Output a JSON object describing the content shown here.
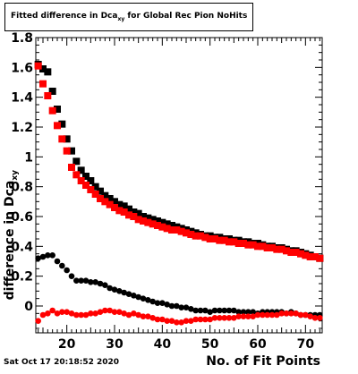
{
  "title": {
    "text": "Fitted difference in Dca",
    "sub": "xy",
    "rest": " for Global Rec Pion NoHits"
  },
  "timestamp": "Sat Oct 17 20:18:52 2020",
  "chart_data": {
    "type": "scatter",
    "xlabel": "No. of Fit Points",
    "ylabel": "difference in Dca",
    "ylabel_sub": "xy",
    "xlim": [
      13.5,
      73.5
    ],
    "ylim": [
      -0.18,
      1.8
    ],
    "xticks": [
      20,
      30,
      40,
      50,
      60,
      70
    ],
    "yticks": [
      0,
      0.2,
      0.4,
      0.6,
      0.8,
      1,
      1.2,
      1.4,
      1.6,
      1.8
    ],
    "yticklabels": [
      "0",
      "0.2",
      "0.4",
      "0.6",
      "0.8",
      "1",
      "1.2",
      "1.4",
      "1.6",
      "1.8"
    ],
    "series": [
      {
        "color": "#000000",
        "marker": "square",
        "x": [
          14,
          15,
          16,
          17,
          18,
          19,
          20,
          21,
          22,
          23,
          24,
          25,
          26,
          27,
          28,
          29,
          30,
          31,
          32,
          33,
          34,
          35,
          36,
          37,
          38,
          39,
          40,
          41,
          42,
          43,
          44,
          45,
          46,
          47,
          48,
          49,
          50,
          51,
          52,
          53,
          54,
          55,
          56,
          57,
          58,
          59,
          60,
          61,
          62,
          63,
          64,
          65,
          66,
          67,
          68,
          69,
          70,
          71,
          72,
          73
        ],
        "y": [
          1.62,
          1.59,
          1.57,
          1.44,
          1.32,
          1.22,
          1.12,
          1.04,
          0.97,
          0.91,
          0.87,
          0.84,
          0.8,
          0.77,
          0.74,
          0.72,
          0.7,
          0.68,
          0.67,
          0.65,
          0.63,
          0.62,
          0.6,
          0.59,
          0.58,
          0.57,
          0.56,
          0.55,
          0.54,
          0.53,
          0.52,
          0.51,
          0.5,
          0.49,
          0.48,
          0.47,
          0.47,
          0.46,
          0.46,
          0.45,
          0.45,
          0.44,
          0.44,
          0.43,
          0.43,
          0.42,
          0.42,
          0.41,
          0.4,
          0.4,
          0.39,
          0.39,
          0.38,
          0.37,
          0.37,
          0.36,
          0.35,
          0.34,
          0.33,
          0.32
        ]
      },
      {
        "color": "#ff0000",
        "marker": "square",
        "x": [
          14,
          15,
          16,
          17,
          18,
          19,
          20,
          21,
          22,
          23,
          24,
          25,
          26,
          27,
          28,
          29,
          30,
          31,
          32,
          33,
          34,
          35,
          36,
          37,
          38,
          39,
          40,
          41,
          42,
          43,
          44,
          45,
          46,
          47,
          48,
          49,
          50,
          51,
          52,
          53,
          54,
          55,
          56,
          57,
          58,
          59,
          60,
          61,
          62,
          63,
          64,
          65,
          66,
          67,
          68,
          69,
          70,
          71,
          72,
          73
        ],
        "y": [
          1.61,
          1.49,
          1.41,
          1.31,
          1.21,
          1.12,
          1.04,
          0.93,
          0.88,
          0.84,
          0.81,
          0.78,
          0.75,
          0.72,
          0.7,
          0.68,
          0.66,
          0.64,
          0.63,
          0.61,
          0.6,
          0.58,
          0.57,
          0.56,
          0.55,
          0.54,
          0.53,
          0.52,
          0.51,
          0.51,
          0.5,
          0.49,
          0.48,
          0.47,
          0.47,
          0.46,
          0.45,
          0.45,
          0.44,
          0.44,
          0.43,
          0.43,
          0.42,
          0.42,
          0.41,
          0.41,
          0.4,
          0.4,
          0.39,
          0.39,
          0.38,
          0.38,
          0.37,
          0.36,
          0.36,
          0.35,
          0.34,
          0.33,
          0.33,
          0.32
        ]
      },
      {
        "color": "#000000",
        "marker": "circle",
        "x": [
          14,
          15,
          16,
          17,
          18,
          19,
          20,
          21,
          22,
          23,
          24,
          25,
          26,
          27,
          28,
          29,
          30,
          31,
          32,
          33,
          34,
          35,
          36,
          37,
          38,
          39,
          40,
          41,
          42,
          43,
          44,
          45,
          46,
          47,
          48,
          49,
          50,
          51,
          52,
          53,
          54,
          55,
          56,
          57,
          58,
          59,
          60,
          61,
          62,
          63,
          64,
          65,
          66,
          67,
          68,
          69,
          70,
          71,
          72,
          73
        ],
        "y": [
          0.32,
          0.33,
          0.34,
          0.34,
          0.3,
          0.27,
          0.24,
          0.2,
          0.17,
          0.17,
          0.17,
          0.16,
          0.16,
          0.15,
          0.14,
          0.12,
          0.11,
          0.1,
          0.09,
          0.08,
          0.07,
          0.06,
          0.05,
          0.04,
          0.03,
          0.02,
          0.02,
          0.01,
          0.0,
          0.0,
          -0.01,
          -0.01,
          -0.02,
          -0.03,
          -0.03,
          -0.03,
          -0.04,
          -0.03,
          -0.03,
          -0.03,
          -0.03,
          -0.03,
          -0.04,
          -0.04,
          -0.04,
          -0.04,
          -0.05,
          -0.04,
          -0.04,
          -0.04,
          -0.04,
          -0.04,
          -0.05,
          -0.04,
          -0.05,
          -0.06,
          -0.06,
          -0.06,
          -0.06,
          -0.06
        ]
      },
      {
        "color": "#ff0000",
        "marker": "circle",
        "x": [
          14,
          15,
          16,
          17,
          18,
          19,
          20,
          21,
          22,
          23,
          24,
          25,
          26,
          27,
          28,
          29,
          30,
          31,
          32,
          33,
          34,
          35,
          36,
          37,
          38,
          39,
          40,
          41,
          42,
          43,
          44,
          45,
          46,
          47,
          48,
          49,
          50,
          51,
          52,
          53,
          54,
          55,
          56,
          57,
          58,
          59,
          60,
          61,
          62,
          63,
          64,
          65,
          66,
          67,
          68,
          69,
          70,
          71,
          72,
          73
        ],
        "y": [
          -0.1,
          -0.06,
          -0.05,
          -0.03,
          -0.05,
          -0.04,
          -0.04,
          -0.05,
          -0.06,
          -0.06,
          -0.06,
          -0.05,
          -0.05,
          -0.04,
          -0.03,
          -0.03,
          -0.04,
          -0.04,
          -0.05,
          -0.06,
          -0.05,
          -0.06,
          -0.07,
          -0.07,
          -0.08,
          -0.09,
          -0.09,
          -0.1,
          -0.1,
          -0.11,
          -0.11,
          -0.1,
          -0.1,
          -0.09,
          -0.09,
          -0.09,
          -0.09,
          -0.08,
          -0.08,
          -0.08,
          -0.08,
          -0.08,
          -0.07,
          -0.07,
          -0.07,
          -0.07,
          -0.06,
          -0.06,
          -0.06,
          -0.06,
          -0.06,
          -0.05,
          -0.05,
          -0.05,
          -0.05,
          -0.06,
          -0.06,
          -0.07,
          -0.08,
          -0.08
        ]
      }
    ]
  }
}
